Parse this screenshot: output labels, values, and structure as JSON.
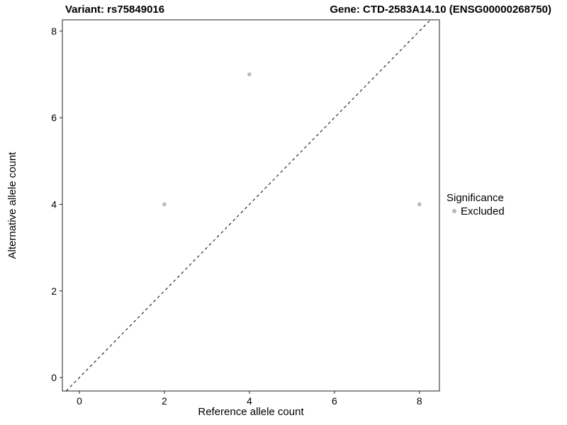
{
  "chart_data": {
    "type": "scatter",
    "title_left": "Variant: rs75849016",
    "title_right": "Gene: CTD-2583A14.10 (ENSG00000268750)",
    "xlabel": "Reference allele count",
    "ylabel": "Alternative allele count",
    "xlim": [
      -0.4,
      8.47
    ],
    "ylim": [
      -0.31,
      8.26
    ],
    "xticks": [
      0,
      2,
      4,
      6,
      8
    ],
    "yticks": [
      0,
      2,
      4,
      6,
      8
    ],
    "grid": false,
    "panel_border": true,
    "point_color": "#b9b9b9",
    "point_radius": 2.8,
    "series": [
      {
        "name": "Excluded",
        "color": "#b9b9b9",
        "points": [
          {
            "x": 4,
            "y": 7
          },
          {
            "x": 2,
            "y": 4
          },
          {
            "x": 8,
            "y": 4
          }
        ]
      }
    ],
    "identity_line": {
      "equation": "y = x",
      "style": "dashed",
      "color": "#000000"
    },
    "legend": {
      "title": "Significance",
      "position": "right",
      "entries": [
        {
          "label": "Excluded",
          "color": "#b9b9b9"
        }
      ]
    }
  }
}
